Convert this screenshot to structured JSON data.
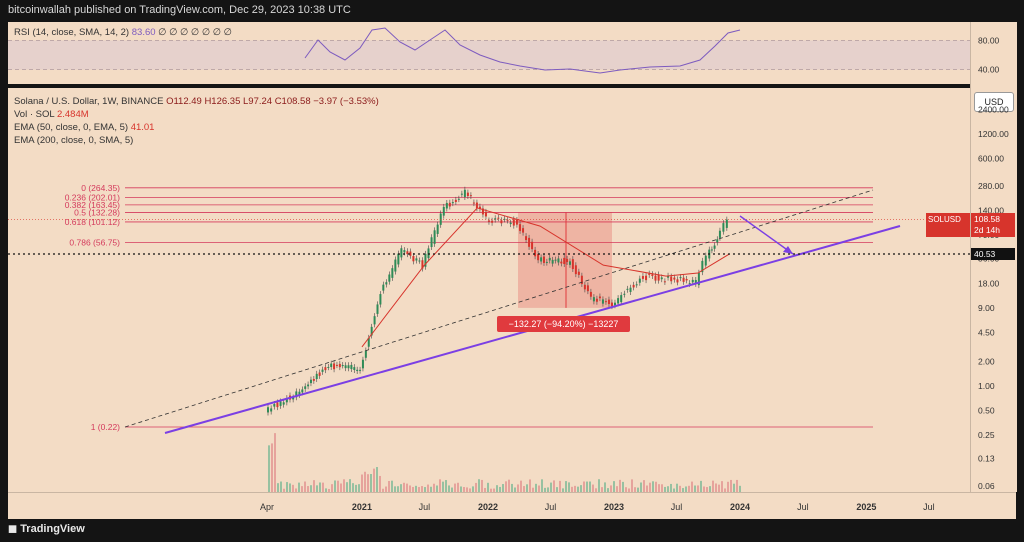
{
  "header": {
    "publisher_line": "bitcoinwallah published on TradingView.com, Dec 29, 2023 10:38 UTC"
  },
  "rsi": {
    "label": "RSI (14, close, SMA, 14, 2)",
    "value": "83.60",
    "placeholders": "∅ ∅ ∅ ∅ ∅ ∅ ∅",
    "levels": [
      "80.00",
      "40.00"
    ]
  },
  "legend": {
    "symbol": "Solana / U.S. Dollar, 1W, BINANCE",
    "ohlc": "O112.49  H126.35  L97.24  C108.58  −3.97 (−3.53%)",
    "vol_label": "Vol · SOL",
    "vol_value": "2.484M",
    "ema50_label": "EMA (50, close, 0, EMA, 5)",
    "ema50_value": "41.01",
    "ema200_label": "EMA (200, close, 0, SMA, 5)"
  },
  "currency_button": "USD",
  "price_axis": [
    "2400.00",
    "1200.00",
    "600.00",
    "280.00",
    "140.00",
    "70.00",
    "36.00",
    "18.00",
    "9.00",
    "4.50",
    "2.00",
    "1.00",
    "0.50",
    "0.25",
    "0.13",
    "0.06"
  ],
  "time_axis": [
    "Apr",
    "2021",
    "Jul",
    "2022",
    "Jul",
    "2023",
    "Jul",
    "2024",
    "Jul",
    "2025",
    "Jul"
  ],
  "fib_labels": [
    "0 (264.35)",
    "0.236 (202.01)",
    "0.382 (163.45)",
    "0.5 (132.28)",
    "0.618 (101.12)",
    "0.786 (56.75)",
    "1 (0.22)"
  ],
  "current": {
    "symbol": "SOLUSD",
    "price": "108.58",
    "countdown": "2d 14h",
    "crosshair": "40.53"
  },
  "measure_label": "−132.27 (−94.20%) −13227",
  "footer": "TradingView",
  "colors": {
    "bg": "#141414",
    "panel": "#f3dcc5",
    "fib": "#d43a5c",
    "trend": "#7b3fe4",
    "rsi": "#7d5bbf",
    "ema": "#d7342c",
    "measure": "#e03a3e",
    "up": "#2e8b57",
    "down": "#d7342c"
  },
  "chart_data": {
    "type": "line",
    "title": "Solana / U.S. Dollar, 1W, BINANCE",
    "scale": "log",
    "ylim": [
      0.03,
      3000
    ],
    "series": [
      {
        "name": "SOLUSD",
        "x": [
          "2020-04",
          "2020-07",
          "2020-10",
          "2021-01",
          "2021-03",
          "2021-05",
          "2021-07",
          "2021-09",
          "2021-11",
          "2022-01",
          "2022-04",
          "2022-06",
          "2022-09",
          "2022-11",
          "2023-01",
          "2023-04",
          "2023-07",
          "2023-09",
          "2023-10",
          "2023-11",
          "2023-12"
        ],
        "values": [
          0.5,
          0.8,
          1.8,
          1.6,
          14,
          45,
          30,
          150,
          240,
          110,
          100,
          35,
          33,
          12,
          10,
          22,
          20,
          19,
          40,
          60,
          108.58
        ]
      },
      {
        "name": "EMA 50",
        "x": [
          "2021-01",
          "2021-07",
          "2021-12",
          "2022-06",
          "2022-12",
          "2023-06",
          "2023-09",
          "2023-12"
        ],
        "values": [
          3,
          30,
          150,
          90,
          30,
          22,
          24,
          41.01
        ]
      }
    ],
    "fib_levels": [
      {
        "ratio": 0,
        "price": 264.35
      },
      {
        "ratio": 0.236,
        "price": 202.01
      },
      {
        "ratio": 0.382,
        "price": 163.45
      },
      {
        "ratio": 0.5,
        "price": 132.28
      },
      {
        "ratio": 0.618,
        "price": 101.12
      },
      {
        "ratio": 0.786,
        "price": 56.75
      },
      {
        "ratio": 1,
        "price": 0.22
      }
    ],
    "measure": {
      "change": -132.27,
      "percent": -94.2
    }
  }
}
